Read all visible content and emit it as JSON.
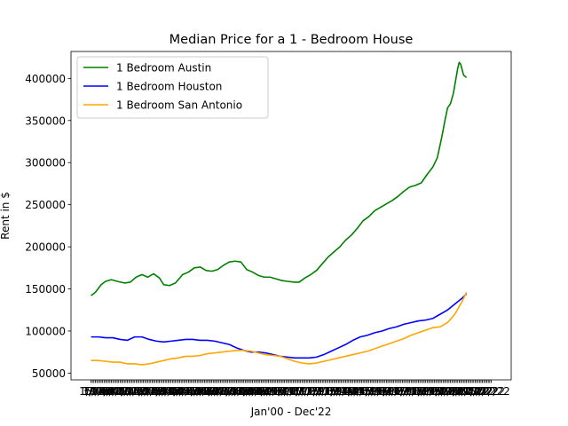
{
  "chart_data": {
    "type": "line",
    "title": "Median Price for a 1 - Bedroom House",
    "xlabel": "Jan'00 - Dec'22",
    "ylabel": "Rent in $",
    "ylim": [
      42000,
      432000
    ],
    "xlim": [
      -13.75,
      288.75
    ],
    "y_ticks": [
      50000,
      100000,
      150000,
      200000,
      250000,
      300000,
      350000,
      400000
    ],
    "y_tick_labels": [
      "50000",
      "100000",
      "150000",
      "200000",
      "250000",
      "300000",
      "350000",
      "400000"
    ],
    "x_ticks_note": "tick marks at every month; labels overlap into an unreadable band",
    "x_tick_label_sample": [
      "1/",
      "12/22"
    ],
    "legend_position": "upper left",
    "grid": false,
    "x_start_month": "Jan 2000",
    "x_period": "monthly",
    "series": [
      {
        "name": "1 Bedroom Austin",
        "color": "#008000",
        "anchors": [
          [
            0,
            142000
          ],
          [
            3,
            146000
          ],
          [
            7,
            155000
          ],
          [
            10,
            159000
          ],
          [
            14,
            161000
          ],
          [
            18,
            159000
          ],
          [
            23,
            157000
          ],
          [
            27,
            158000
          ],
          [
            31,
            164000
          ],
          [
            35,
            167000
          ],
          [
            39,
            164000
          ],
          [
            43,
            168000
          ],
          [
            47,
            163000
          ],
          [
            50,
            155000
          ],
          [
            54,
            154000
          ],
          [
            58,
            157000
          ],
          [
            63,
            167000
          ],
          [
            67,
            170000
          ],
          [
            71,
            175000
          ],
          [
            75,
            176000
          ],
          [
            79,
            172000
          ],
          [
            83,
            171000
          ],
          [
            87,
            173000
          ],
          [
            91,
            178000
          ],
          [
            95,
            182000
          ],
          [
            99,
            183000
          ],
          [
            103,
            182000
          ],
          [
            107,
            173000
          ],
          [
            111,
            170000
          ],
          [
            115,
            166000
          ],
          [
            119,
            164000
          ],
          [
            123,
            164000
          ],
          [
            127,
            162000
          ],
          [
            131,
            160000
          ],
          [
            135,
            159000
          ],
          [
            140,
            158000
          ],
          [
            143,
            158000
          ],
          [
            147,
            163000
          ],
          [
            151,
            167000
          ],
          [
            155,
            172000
          ],
          [
            159,
            180000
          ],
          [
            163,
            188000
          ],
          [
            167,
            194000
          ],
          [
            171,
            200000
          ],
          [
            175,
            208000
          ],
          [
            179,
            214000
          ],
          [
            183,
            222000
          ],
          [
            187,
            231000
          ],
          [
            191,
            236000
          ],
          [
            195,
            243000
          ],
          [
            199,
            247000
          ],
          [
            203,
            251000
          ],
          [
            207,
            255000
          ],
          [
            211,
            260000
          ],
          [
            215,
            266000
          ],
          [
            219,
            271000
          ],
          [
            223,
            273000
          ],
          [
            227,
            276000
          ],
          [
            231,
            286000
          ],
          [
            235,
            295000
          ],
          [
            238,
            306000
          ],
          [
            241,
            330000
          ],
          [
            243,
            348000
          ],
          [
            245,
            365000
          ],
          [
            247,
            370000
          ],
          [
            249,
            382000
          ],
          [
            251,
            402000
          ],
          [
            252,
            412000
          ],
          [
            253,
            419000
          ],
          [
            254,
            417000
          ],
          [
            256,
            404000
          ],
          [
            258,
            401000
          ]
        ]
      },
      {
        "name": "1 Bedroom Houston",
        "color": "#0000ff",
        "anchors": [
          [
            0,
            93000
          ],
          [
            5,
            93000
          ],
          [
            10,
            92000
          ],
          [
            15,
            92000
          ],
          [
            20,
            90000
          ],
          [
            25,
            89000
          ],
          [
            30,
            93000
          ],
          [
            35,
            93000
          ],
          [
            40,
            90000
          ],
          [
            45,
            88000
          ],
          [
            50,
            87000
          ],
          [
            55,
            88000
          ],
          [
            60,
            89000
          ],
          [
            65,
            90000
          ],
          [
            70,
            90000
          ],
          [
            75,
            89000
          ],
          [
            80,
            89000
          ],
          [
            85,
            88000
          ],
          [
            90,
            86000
          ],
          [
            95,
            84000
          ],
          [
            100,
            80000
          ],
          [
            105,
            77000
          ],
          [
            110,
            75000
          ],
          [
            115,
            75000
          ],
          [
            120,
            74000
          ],
          [
            125,
            72000
          ],
          [
            130,
            70000
          ],
          [
            135,
            69000
          ],
          [
            140,
            68000
          ],
          [
            145,
            68000
          ],
          [
            150,
            68000
          ],
          [
            155,
            69000
          ],
          [
            160,
            72000
          ],
          [
            165,
            76000
          ],
          [
            170,
            80000
          ],
          [
            175,
            84000
          ],
          [
            180,
            89000
          ],
          [
            185,
            93000
          ],
          [
            190,
            95000
          ],
          [
            195,
            98000
          ],
          [
            200,
            100000
          ],
          [
            205,
            103000
          ],
          [
            210,
            105000
          ],
          [
            215,
            108000
          ],
          [
            220,
            110000
          ],
          [
            225,
            112000
          ],
          [
            230,
            113000
          ],
          [
            235,
            115000
          ],
          [
            240,
            120000
          ],
          [
            245,
            125000
          ],
          [
            250,
            132000
          ],
          [
            255,
            139000
          ],
          [
            258,
            144000
          ]
        ]
      },
      {
        "name": "1 Bedroom San Antonio",
        "color": "#ffa500",
        "anchors": [
          [
            0,
            65000
          ],
          [
            5,
            65000
          ],
          [
            10,
            64000
          ],
          [
            15,
            63000
          ],
          [
            20,
            63000
          ],
          [
            25,
            61000
          ],
          [
            30,
            61000
          ],
          [
            35,
            60000
          ],
          [
            40,
            61000
          ],
          [
            45,
            63000
          ],
          [
            50,
            65000
          ],
          [
            55,
            67000
          ],
          [
            60,
            68000
          ],
          [
            65,
            70000
          ],
          [
            70,
            70000
          ],
          [
            75,
            71000
          ],
          [
            80,
            73000
          ],
          [
            85,
            74000
          ],
          [
            90,
            75000
          ],
          [
            95,
            76000
          ],
          [
            100,
            77000
          ],
          [
            105,
            77000
          ],
          [
            110,
            76000
          ],
          [
            115,
            74000
          ],
          [
            120,
            72000
          ],
          [
            125,
            71000
          ],
          [
            130,
            70000
          ],
          [
            135,
            67000
          ],
          [
            140,
            64000
          ],
          [
            145,
            62000
          ],
          [
            150,
            61000
          ],
          [
            155,
            62000
          ],
          [
            160,
            64000
          ],
          [
            165,
            66000
          ],
          [
            170,
            68000
          ],
          [
            175,
            70000
          ],
          [
            180,
            72000
          ],
          [
            185,
            74000
          ],
          [
            190,
            76000
          ],
          [
            195,
            79000
          ],
          [
            200,
            82000
          ],
          [
            205,
            85000
          ],
          [
            210,
            88000
          ],
          [
            215,
            91000
          ],
          [
            220,
            95000
          ],
          [
            225,
            98000
          ],
          [
            230,
            101000
          ],
          [
            235,
            104000
          ],
          [
            240,
            105000
          ],
          [
            245,
            110000
          ],
          [
            250,
            120000
          ],
          [
            255,
            135000
          ],
          [
            258,
            146000
          ]
        ]
      }
    ]
  }
}
